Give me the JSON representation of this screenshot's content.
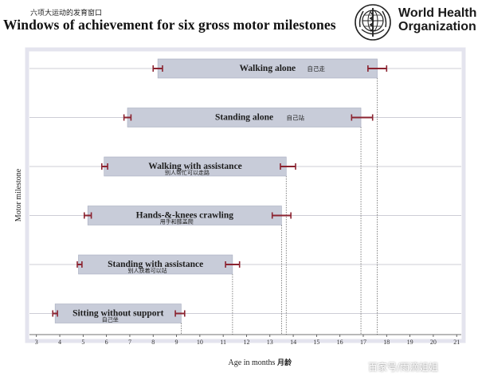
{
  "header": {
    "title_cn": "六项大运动的发育窗口",
    "title": "Windows of achievement for six gross motor milestones",
    "org_line1": "World Health",
    "org_line2": "Organization",
    "logo_icon": "who-emblem-icon"
  },
  "watermark": "百家号/雨滴姐姐",
  "colors": {
    "bar": "#c8ccd9",
    "bar_edge": "#a7acbf",
    "error_bar": "#8b2330",
    "frame": "#e4e4ee",
    "grid": "#bdbdc8",
    "dotted": "#666666"
  },
  "chart_data": {
    "type": "bar",
    "orientation": "horizontal-range",
    "xlabel": "Age in months",
    "xlabel_cn": "月龄",
    "ylabel": "Motor milestone",
    "xlim": [
      2.6,
      21.3
    ],
    "xticks": [
      "3",
      "4",
      "5",
      "6",
      "7",
      "8",
      "9",
      "10",
      "11",
      "12",
      "13",
      "14",
      "15",
      "16",
      "17",
      "18",
      "19",
      "20",
      "21"
    ],
    "grid": "horizontal",
    "milestones": [
      {
        "label": "Walking alone",
        "label_cn": "自己走",
        "start": 8.2,
        "end": 17.6,
        "start_ci": [
          8.0,
          8.4
        ],
        "end_ci": [
          17.2,
          18.0
        ]
      },
      {
        "label": "Standing alone",
        "label_cn": "自己站",
        "start": 6.9,
        "end": 16.9,
        "start_ci": [
          6.75,
          7.05
        ],
        "end_ci": [
          16.5,
          17.4
        ]
      },
      {
        "label": "Walking with assistance",
        "label_cn": "别人帮忙可以走路",
        "start": 5.9,
        "end": 13.7,
        "start_ci": [
          5.8,
          6.05
        ],
        "end_ci": [
          13.45,
          14.1
        ]
      },
      {
        "label": "Hands-&-knees crawling",
        "label_cn": "用手和膝盖爬",
        "start": 5.2,
        "end": 13.5,
        "start_ci": [
          5.05,
          5.35
        ],
        "end_ci": [
          13.1,
          13.9
        ]
      },
      {
        "label": "Standing with assistance",
        "label_cn": "别人扶着可以站",
        "start": 4.8,
        "end": 11.4,
        "start_ci": [
          4.75,
          4.95
        ],
        "end_ci": [
          11.1,
          11.7
        ]
      },
      {
        "label": "Sitting without support",
        "label_cn": "自己坐",
        "start": 3.8,
        "end": 9.2,
        "start_ci": [
          3.7,
          3.9
        ],
        "end_ci": [
          8.95,
          9.35
        ]
      }
    ]
  }
}
